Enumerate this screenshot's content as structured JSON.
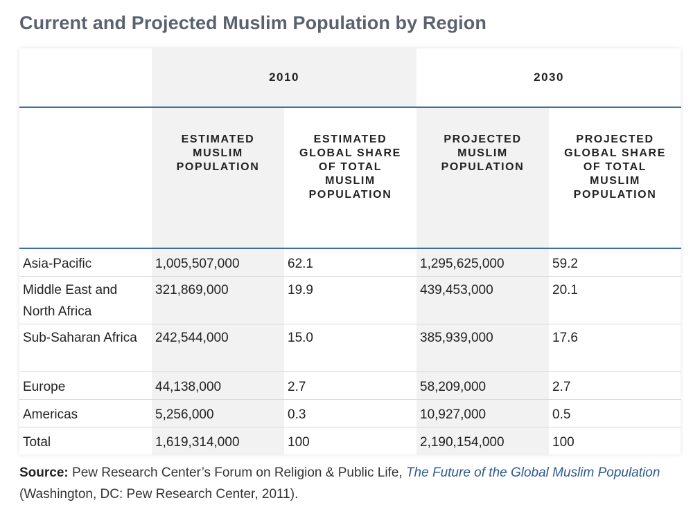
{
  "title": "Current and Projected Muslim Population by Region",
  "table": {
    "years": [
      "2010",
      "2030"
    ],
    "columns": [
      "ESTIMATED MUSLIM POPULATION",
      "ESTIMATED GLOBAL SHARE OF TOTAL MUSLIM POPULATION",
      "PROJECTED MUSLIM POPULATION",
      "PROJECTED GLOBAL SHARE OF TOTAL MUSLIM POPULATION"
    ],
    "rows": [
      {
        "region": "Asia-Pacific",
        "est_pop": "1,005,507,000",
        "est_share": "62.1",
        "proj_pop": "1,295,625,000",
        "proj_share": "59.2"
      },
      {
        "region": "Middle East and North Africa",
        "est_pop": "321,869,000",
        "est_share": "19.9",
        "proj_pop": "439,453,000",
        "proj_share": "20.1"
      },
      {
        "region": "Sub-Saharan Africa",
        "est_pop": "242,544,000",
        "est_share": "15.0",
        "proj_pop": "385,939,000",
        "proj_share": "17.6"
      },
      {
        "region": "Europe",
        "est_pop": "44,138,000",
        "est_share": "2.7",
        "proj_pop": "58,209,000",
        "proj_share": "2.7"
      },
      {
        "region": "Americas",
        "est_pop": "5,256,000",
        "est_share": "0.3",
        "proj_pop": "10,927,000",
        "proj_share": "0.5"
      },
      {
        "region": "Total",
        "est_pop": "1,619,314,000",
        "est_share": "100",
        "proj_pop": "2,190,154,000",
        "proj_share": "100"
      }
    ]
  },
  "source": {
    "label": "Source:",
    "text_before": " Pew Research Center’s Forum on Religion & Public Life, ",
    "link_text": "The Future of the Global Muslim Population",
    "text_after": " (Washington, DC: Pew Research Center, 2011)."
  },
  "colors": {
    "title": "#5a6270",
    "rule": "#3a6ea5",
    "shade": "#f2f2f2",
    "link": "#2d5a8e"
  }
}
